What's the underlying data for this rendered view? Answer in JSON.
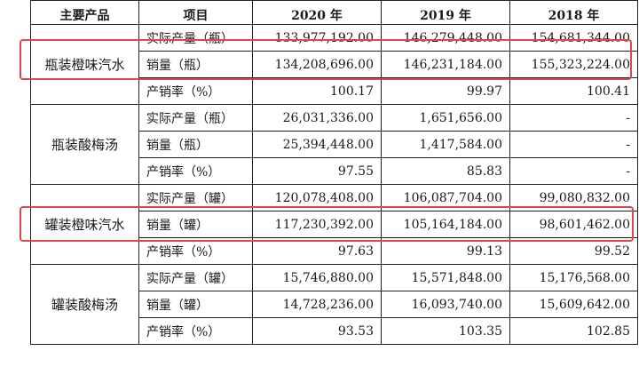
{
  "header": {
    "product": "主要产品",
    "item": "项目",
    "y2020": "2020 年",
    "y2019": "2019 年",
    "y2018": "2018 年"
  },
  "groups": [
    {
      "product": "瓶装橙味汽水",
      "rows": [
        {
          "item": "实际产量（瓶）",
          "v2020": "133,977,192.00",
          "v2019": "146,279,448.00",
          "v2018": "154,681,344.00"
        },
        {
          "item": "销量（瓶）",
          "v2020": "134,208,696.00",
          "v2019": "146,231,184.00",
          "v2018": "155,323,224.00"
        },
        {
          "item": "产销率（%）",
          "v2020": "100.17",
          "v2019": "99.97",
          "v2018": "100.41"
        }
      ]
    },
    {
      "product": "瓶装酸梅汤",
      "rows": [
        {
          "item": "实际产量（瓶）",
          "v2020": "26,031,336.00",
          "v2019": "1,651,656.00",
          "v2018": "-"
        },
        {
          "item": "销量（瓶）",
          "v2020": "25,394,448.00",
          "v2019": "1,417,584.00",
          "v2018": "-"
        },
        {
          "item": "产销率（%）",
          "v2020": "97.55",
          "v2019": "85.83",
          "v2018": "-"
        }
      ]
    },
    {
      "product": "罐装橙味汽水",
      "rows": [
        {
          "item": "实际产量（罐）",
          "v2020": "120,078,408.00",
          "v2019": "106,087,704.00",
          "v2018": "99,080,832.00"
        },
        {
          "item": "销量（罐）",
          "v2020": "117,230,392.00",
          "v2019": "105,164,184.00",
          "v2018": "98,601,462.00"
        },
        {
          "item": "产销率（%）",
          "v2020": "97.63",
          "v2019": "99.13",
          "v2018": "99.52"
        }
      ]
    },
    {
      "product": "罐装酸梅汤",
      "rows": [
        {
          "item": "实际产量（罐）",
          "v2020": "15,746,880.00",
          "v2019": "15,571,848.00",
          "v2018": "15,176,568.00"
        },
        {
          "item": "销量（罐）",
          "v2020": "14,728,236.00",
          "v2019": "16,093,740.00",
          "v2018": "15,609,642.00"
        },
        {
          "item": "产销率（%）",
          "v2020": "93.53",
          "v2019": "103.35",
          "v2018": "102.85"
        }
      ]
    }
  ],
  "annotations": {
    "highlight_color": "#e0474c"
  }
}
